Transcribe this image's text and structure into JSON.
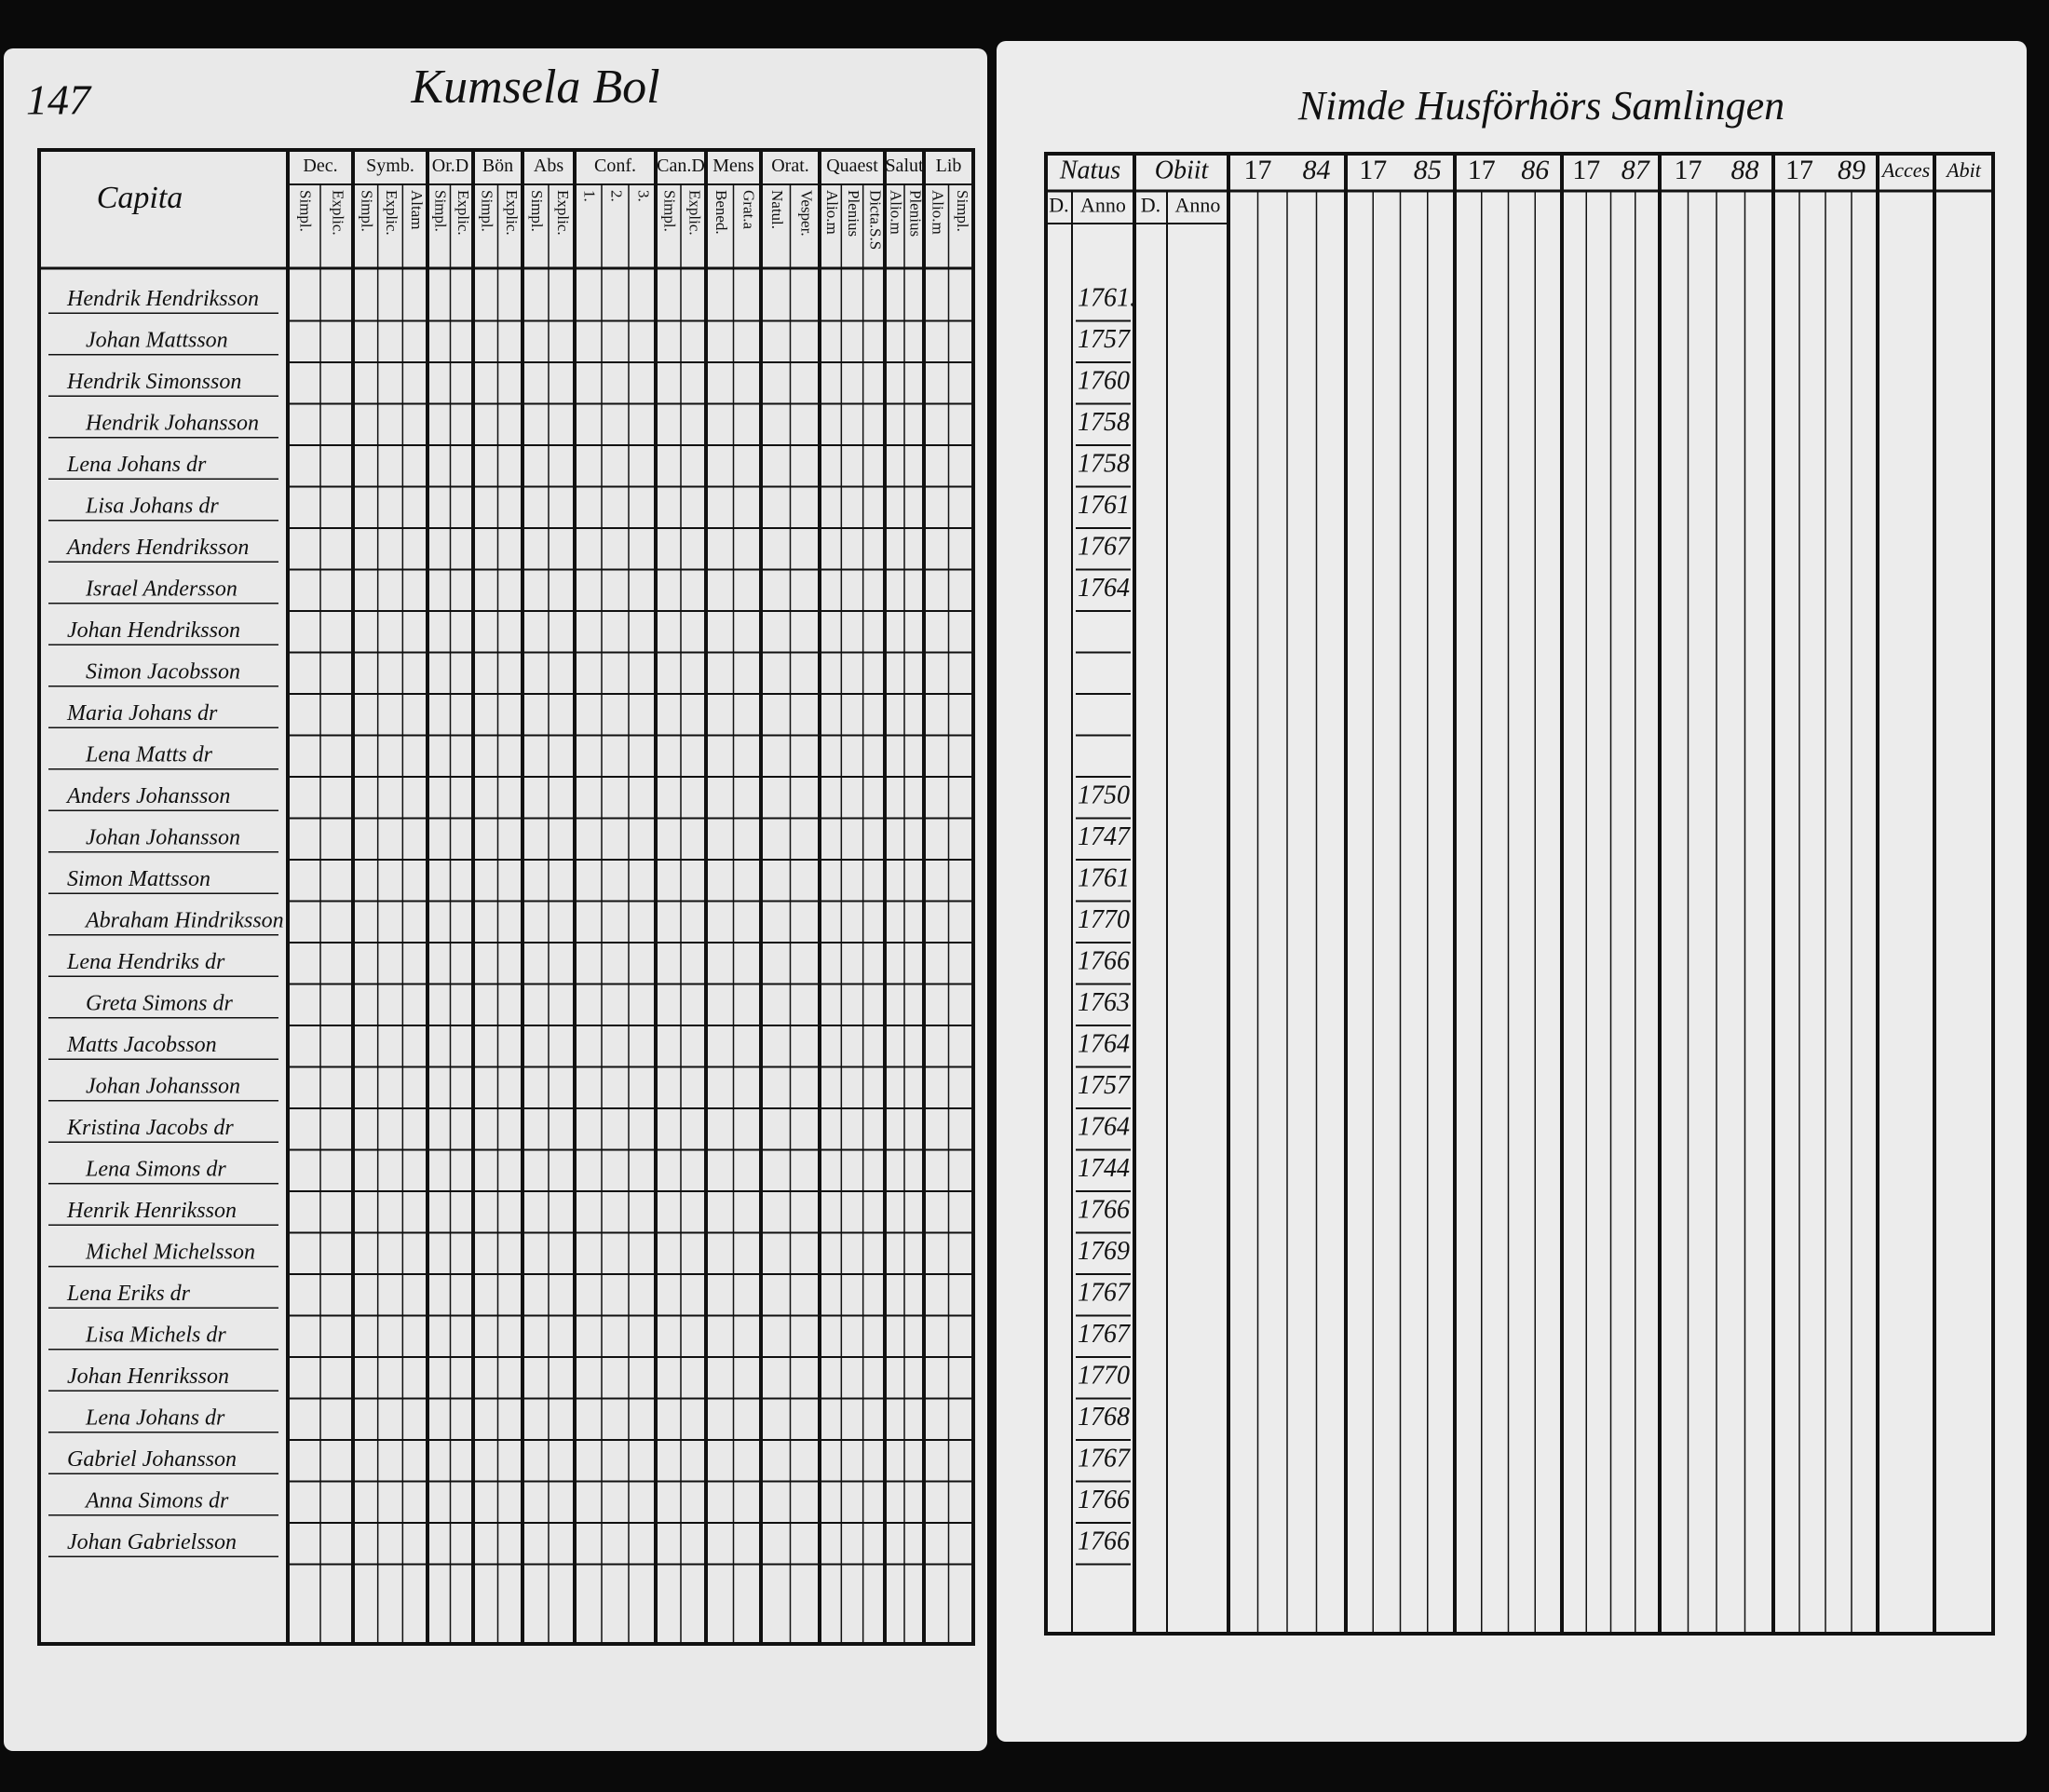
{
  "left_page": {
    "page_number": "147",
    "title": "Kumsela Bol",
    "name_header": "Capita",
    "columns": [
      {
        "label": "Dec.",
        "subs": [
          "Simpl.",
          "Explic."
        ]
      },
      {
        "label": "Symb.",
        "subs": [
          "Simpl.",
          "Explic.",
          "Altam"
        ]
      },
      {
        "label": "Or.D",
        "subs": [
          "Simpl.",
          "Explic."
        ]
      },
      {
        "label": "Bön",
        "subs": [
          "Simpl.",
          "Explic."
        ]
      },
      {
        "label": "Abs",
        "subs": [
          "Simpl.",
          "Explic."
        ]
      },
      {
        "label": "Conf.",
        "subs": [
          "1.",
          "2.",
          "3."
        ]
      },
      {
        "label": "Can.D",
        "subs": [
          "Simpl.",
          "Explic."
        ]
      },
      {
        "label": "Mens",
        "subs": [
          "Bened.",
          "Grat.a"
        ]
      },
      {
        "label": "Orat.",
        "subs": [
          "Natul.",
          "Vesper."
        ]
      },
      {
        "label": "Quaest",
        "subs": [
          "Alio.m",
          "Plenius",
          "Dicta.S.S"
        ]
      },
      {
        "label": "Salut",
        "subs": [
          "Alio.m",
          "Plenius"
        ]
      },
      {
        "label": "Lib",
        "subs": [
          "Alio.m",
          "Simpl."
        ]
      }
    ]
  },
  "right_page": {
    "title": "Nimde Husförhörs Samlingen",
    "natus": "Natus",
    "obiit": "Obiit",
    "day_header": "D.",
    "year_header": "Anno",
    "years": [
      {
        "century": "17",
        "year": "84"
      },
      {
        "century": "17",
        "year": "85"
      },
      {
        "century": "17",
        "year": "86"
      },
      {
        "century": "17",
        "year": "87"
      },
      {
        "century": "17",
        "year": "88"
      },
      {
        "century": "17",
        "year": "89"
      }
    ],
    "acces": "Acces",
    "abit": "Abit"
  },
  "rows": [
    {
      "name": "Hendrik Hendriksson",
      "born": "1761."
    },
    {
      "name": "Johan Mattsson",
      "born": "1757"
    },
    {
      "name": "Hendrik Simonsson",
      "born": "1760"
    },
    {
      "name": "Hendrik Johansson",
      "born": "1758"
    },
    {
      "name": "Lena Johans dr",
      "born": "1758"
    },
    {
      "name": "Lisa Johans dr",
      "born": "1761"
    },
    {
      "name": "Anders Hendriksson",
      "born": "1767"
    },
    {
      "name": "Israel Andersson",
      "born": "1764"
    },
    {
      "name": "Johan Hendriksson"
    },
    {
      "name": "Simon Jacobsson"
    },
    {
      "name": "Maria Johans dr"
    },
    {
      "name": "Lena Matts dr"
    },
    {
      "name": "Anders Johansson",
      "born": "1750"
    },
    {
      "name": "Johan Johansson",
      "born": "1747"
    },
    {
      "name": "Simon Mattsson",
      "born": "1761"
    },
    {
      "name": "Abraham Hindriksson",
      "born": "1770"
    },
    {
      "name": "Lena Hendriks dr",
      "born": "1766"
    },
    {
      "name": "Greta Simons dr",
      "born": "1763"
    },
    {
      "name": "Matts Jacobsson",
      "born": "1764"
    },
    {
      "name": "Johan Johansson",
      "born": "1757"
    },
    {
      "name": "Kristina Jacobs dr",
      "born": "1764"
    },
    {
      "name": "Lena Simons dr",
      "born": "1744"
    },
    {
      "name": "Henrik Henriksson",
      "born": "1766"
    },
    {
      "name": "Michel Michelsson",
      "born": "1769"
    },
    {
      "name": "Lena Eriks dr",
      "born": "1767"
    },
    {
      "name": "Lisa Michels dr",
      "born": "1767"
    },
    {
      "name": "Johan Henriksson",
      "born": "1770"
    },
    {
      "name": "Lena Johans dr",
      "born": "1768"
    },
    {
      "name": "Gabriel Johansson",
      "born": "1767"
    },
    {
      "name": "Anna Simons dr",
      "born": "1766"
    },
    {
      "name": "Johan Gabrielsson",
      "born": "1766"
    }
  ]
}
